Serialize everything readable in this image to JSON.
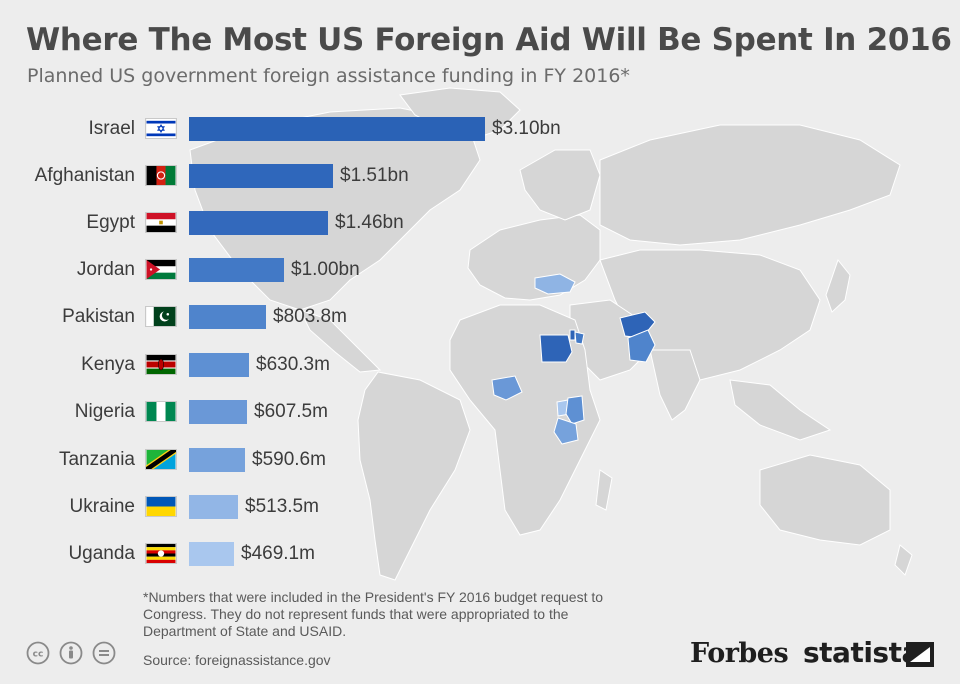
{
  "header": {
    "title": "Where The Most US Foreign Aid Will Be Spent In 2016",
    "subtitle": "Planned US government foreign assistance funding in FY 2016*"
  },
  "chart_data": {
    "type": "bar",
    "orientation": "horizontal",
    "title": "Where The Most US Foreign Aid Will Be Spent In 2016",
    "subtitle": "Planned US government foreign assistance funding in FY 2016*",
    "unit": "USD",
    "categories": [
      "Israel",
      "Afghanistan",
      "Egypt",
      "Jordan",
      "Pakistan",
      "Kenya",
      "Nigeria",
      "Tanzania",
      "Ukraine",
      "Uganda"
    ],
    "values_millions": [
      3100,
      1510,
      1460,
      1000,
      803.8,
      630.3,
      607.5,
      590.6,
      513.5,
      469.1
    ],
    "value_labels": [
      "$3.10bn",
      "$1.51bn",
      "$1.46bn",
      "$1.00bn",
      "$803.8m",
      "$630.3m",
      "$607.5m",
      "$590.6m",
      "$513.5m",
      "$469.1m"
    ],
    "colors": [
      "#2a62b6",
      "#2f67bb",
      "#3369bc",
      "#4279c6",
      "#4f84cc",
      "#5e90d3",
      "#6a98d7",
      "#76a2dc",
      "#92b6e6",
      "#a9c7ee"
    ],
    "xlim": [
      0,
      3100
    ],
    "grid": false,
    "legend": "none"
  },
  "footer": {
    "note": "*Numbers that were included in the President's  FY 2016 budget request to Congress. They do not represent funds that were appropriated to the Department of State and USAID.",
    "source": "Source: foreignassistance.gov",
    "brand_forbes": "Forbes",
    "brand_statista": "statista"
  },
  "colors": {
    "background": "#ededed",
    "land": "#d5d5d5",
    "highlight_dark": "#2e64b7",
    "highlight_mid": "#5b8ed2",
    "highlight_light": "#8fb4e4"
  }
}
